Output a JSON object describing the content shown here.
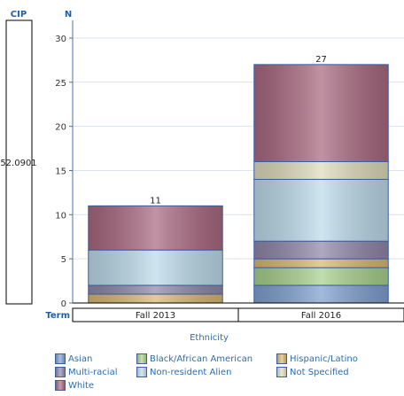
{
  "header": {
    "cip_label": "CIP",
    "n_label": "N",
    "term_label": "Term"
  },
  "cip_value": "52.0901",
  "legend": {
    "title": "Ethnicity",
    "items": [
      {
        "label": "Asian",
        "color": "#7f9fcf"
      },
      {
        "label": "Black/African American",
        "color": "#a8d08d"
      },
      {
        "label": "Hispanic/Latino",
        "color": "#d9b871"
      },
      {
        "label": "Multi-racial",
        "color": "#8f86a8"
      },
      {
        "label": "Non-resident Alien",
        "color": "#bcdbea"
      },
      {
        "label": "Not Specified",
        "color": "#dddcbc"
      },
      {
        "label": "White",
        "color": "#a8687f"
      }
    ]
  },
  "chart_data": {
    "type": "bar",
    "stacked": true,
    "categories": [
      "Fall 2013",
      "Fall 2016"
    ],
    "ylim": [
      0,
      32
    ],
    "yticks": [
      0,
      5,
      10,
      15,
      20,
      25,
      30
    ],
    "ylabel": "N",
    "xlabel": "Term",
    "legend_title": "Ethnicity",
    "totals": [
      11,
      27
    ],
    "series": [
      {
        "name": "Asian",
        "values": [
          0,
          2
        ]
      },
      {
        "name": "Black/African American",
        "values": [
          0,
          2
        ]
      },
      {
        "name": "Hispanic/Latino",
        "values": [
          1,
          1
        ]
      },
      {
        "name": "Multi-racial",
        "values": [
          1,
          2
        ]
      },
      {
        "name": "Non-resident Alien",
        "values": [
          4,
          7
        ]
      },
      {
        "name": "Not Specified",
        "values": [
          0,
          2
        ]
      },
      {
        "name": "White",
        "values": [
          5,
          11
        ]
      }
    ]
  }
}
